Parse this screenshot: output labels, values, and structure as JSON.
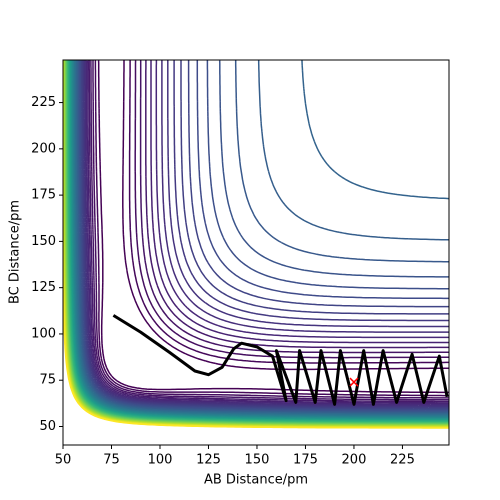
{
  "chart_data": {
    "type": "trajectory",
    "xlabel": "AB Distance/pm",
    "ylabel": "BC Distance/pm",
    "xlim": [
      50,
      249
    ],
    "ylim": [
      40,
      248
    ],
    "xticks": [
      50,
      75,
      100,
      125,
      150,
      175,
      200,
      225
    ],
    "yticks": [
      50,
      75,
      100,
      125,
      150,
      175,
      200,
      225
    ],
    "color": "#000000",
    "x": [
      76,
      90,
      105,
      118,
      125,
      132,
      138,
      142,
      150,
      158,
      165,
      160,
      170,
      172,
      180,
      183,
      190,
      193,
      200,
      205,
      210,
      215,
      222,
      230,
      236,
      244,
      248
    ],
    "values": [
      110,
      101,
      90,
      80,
      78,
      82,
      92,
      95,
      93,
      88,
      64,
      91,
      63,
      91,
      63,
      91,
      62,
      91,
      62,
      91,
      62,
      91,
      63,
      89,
      63,
      88,
      66
    ],
    "marker": {
      "x": 200,
      "y": 74,
      "color": "#ff0000"
    }
  }
}
